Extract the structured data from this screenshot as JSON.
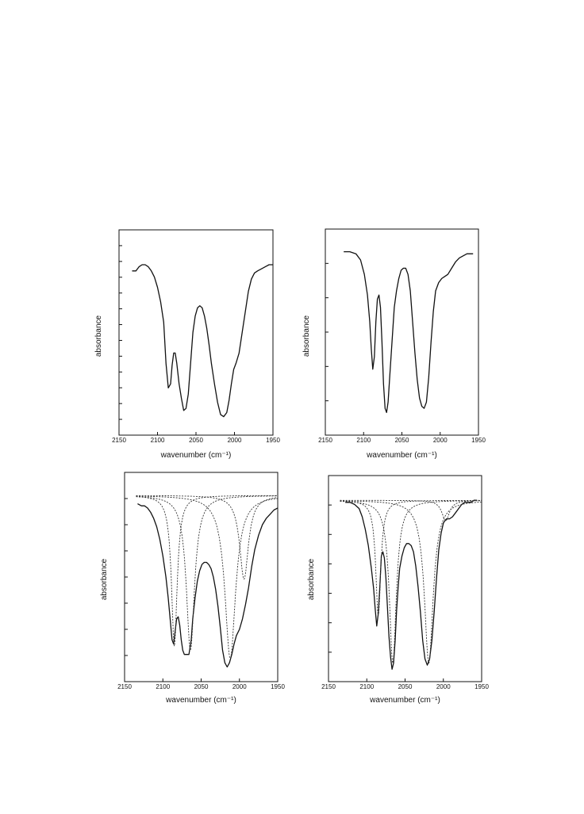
{
  "chart_data": [
    {
      "type": "line",
      "xlabel": "wavenumber (cm⁻¹)",
      "ylabel": "absorbance",
      "xlim": [
        2150,
        1950
      ],
      "x_ticks": [
        2150,
        2100,
        2050,
        2000,
        1950
      ],
      "x_tick_labels": [
        "2150",
        "2100",
        "2050",
        "2000",
        "1950"
      ],
      "y_tick_count": 12,
      "ylim": [
        0,
        1
      ],
      "series": [
        {
          "role": "spectrum",
          "x": [
            2133,
            2128,
            2124,
            2120,
            2116,
            2112,
            2108,
            2104,
            2100,
            2096,
            2092,
            2089,
            2086,
            2083,
            2081,
            2079,
            2077,
            2075,
            2072,
            2069,
            2066,
            2063,
            2060,
            2057,
            2054,
            2051,
            2048,
            2045,
            2042,
            2039,
            2036,
            2033,
            2030,
            2026,
            2022,
            2018,
            2014,
            2010,
            2007,
            2004,
            2001,
            1998,
            1994,
            1990,
            1986,
            1982,
            1978,
            1974,
            1970,
            1965,
            1960,
            1955,
            1950,
            1945
          ],
          "y": [
            0.8,
            0.8,
            0.82,
            0.83,
            0.83,
            0.82,
            0.8,
            0.77,
            0.72,
            0.65,
            0.55,
            0.35,
            0.23,
            0.25,
            0.34,
            0.4,
            0.4,
            0.35,
            0.25,
            0.18,
            0.12,
            0.13,
            0.2,
            0.35,
            0.5,
            0.58,
            0.62,
            0.63,
            0.62,
            0.58,
            0.52,
            0.44,
            0.35,
            0.25,
            0.16,
            0.1,
            0.09,
            0.11,
            0.17,
            0.25,
            0.32,
            0.35,
            0.4,
            0.5,
            0.6,
            0.7,
            0.76,
            0.79,
            0.8,
            0.81,
            0.82,
            0.83,
            0.83,
            0.83
          ]
        }
      ]
    },
    {
      "type": "line",
      "xlabel": "wavenumber (cm⁻¹)",
      "ylabel": "absorbance",
      "xlim": [
        2150,
        1950
      ],
      "x_ticks": [
        2150,
        2100,
        2050,
        2000,
        1950
      ],
      "x_tick_labels": [
        "2150",
        "2100",
        "2050",
        "2000",
        "1950"
      ],
      "y_tick_count": 5,
      "ylim": [
        0,
        1
      ],
      "series": [
        {
          "role": "spectrum",
          "x": [
            2126,
            2118,
            2110,
            2104,
            2099,
            2095,
            2092,
            2090,
            2088,
            2086,
            2084,
            2082,
            2080,
            2078,
            2076,
            2074,
            2072,
            2070,
            2068,
            2066,
            2063,
            2060,
            2057,
            2054,
            2051,
            2048,
            2045,
            2042,
            2039,
            2036,
            2033,
            2030,
            2027,
            2024,
            2021,
            2018,
            2015,
            2012,
            2009,
            2006,
            2002,
            1998,
            1994,
            1990,
            1985,
            1980,
            1975,
            1970,
            1965,
            1960,
            1957
          ],
          "y": [
            0.89,
            0.89,
            0.88,
            0.85,
            0.78,
            0.68,
            0.55,
            0.42,
            0.32,
            0.38,
            0.55,
            0.66,
            0.68,
            0.62,
            0.45,
            0.25,
            0.13,
            0.11,
            0.16,
            0.28,
            0.45,
            0.62,
            0.7,
            0.76,
            0.8,
            0.81,
            0.81,
            0.78,
            0.7,
            0.55,
            0.4,
            0.27,
            0.18,
            0.14,
            0.13,
            0.16,
            0.28,
            0.45,
            0.6,
            0.7,
            0.74,
            0.76,
            0.77,
            0.78,
            0.81,
            0.84,
            0.86,
            0.87,
            0.88,
            0.88,
            0.88
          ]
        }
      ]
    },
    {
      "type": "line",
      "xlabel": "wavenumber (cm⁻¹)",
      "ylabel": "absorbance",
      "xlim": [
        2150,
        1950
      ],
      "x_ticks": [
        2150,
        2100,
        2050,
        2000,
        1950
      ],
      "x_tick_labels": [
        "2150",
        "2100",
        "2050",
        "2000",
        "1950"
      ],
      "y_tick_count": 7,
      "ylim": [
        0,
        1
      ],
      "baseline": 0.89,
      "series": [
        {
          "role": "spectrum",
          "x": [
            2133,
            2128,
            2124,
            2120,
            2116,
            2112,
            2108,
            2104,
            2100,
            2096,
            2093,
            2090,
            2088,
            2086,
            2084,
            2082,
            2080,
            2078,
            2076,
            2074,
            2072,
            2069,
            2066,
            2063,
            2061,
            2058,
            2055,
            2052,
            2049,
            2046,
            2043,
            2040,
            2037,
            2034,
            2031,
            2028,
            2025,
            2022,
            2019,
            2016,
            2013,
            2010,
            2007,
            2004,
            2000,
            1996,
            1992,
            1988,
            1984,
            1980,
            1975,
            1970,
            1965,
            1960,
            1955,
            1950,
            1945,
            1940
          ],
          "y": [
            0.85,
            0.84,
            0.84,
            0.83,
            0.81,
            0.78,
            0.74,
            0.68,
            0.6,
            0.5,
            0.4,
            0.28,
            0.2,
            0.18,
            0.24,
            0.3,
            0.31,
            0.27,
            0.2,
            0.15,
            0.13,
            0.13,
            0.13,
            0.2,
            0.3,
            0.4,
            0.48,
            0.53,
            0.56,
            0.57,
            0.57,
            0.56,
            0.54,
            0.5,
            0.44,
            0.36,
            0.26,
            0.15,
            0.09,
            0.07,
            0.09,
            0.13,
            0.18,
            0.22,
            0.25,
            0.3,
            0.37,
            0.45,
            0.55,
            0.63,
            0.7,
            0.75,
            0.78,
            0.8,
            0.82,
            0.83,
            0.84,
            0.85
          ]
        },
        {
          "role": "component",
          "center": 2085,
          "depth": 0.72,
          "width": 4.5
        },
        {
          "role": "component",
          "center": 2064,
          "depth": 0.74,
          "width": 6.5
        },
        {
          "role": "component",
          "center": 2012,
          "depth": 0.78,
          "width": 8.5
        },
        {
          "role": "component",
          "center": 1994,
          "depth": 0.4,
          "width": 7.0
        }
      ]
    },
    {
      "type": "line",
      "xlabel": "wavenumber (cm⁻¹)",
      "ylabel": "absorbance",
      "xlim": [
        2150,
        1950
      ],
      "x_ticks": [
        2150,
        2100,
        2050,
        2000,
        1950
      ],
      "x_tick_labels": [
        "2150",
        "2100",
        "2050",
        "2000",
        "1950"
      ],
      "y_tick_count": 6,
      "ylim": [
        0,
        1
      ],
      "baseline": 0.88,
      "series": [
        {
          "role": "spectrum",
          "x": [
            2128,
            2122,
            2116,
            2110,
            2106,
            2102,
            2098,
            2094,
            2091,
            2089,
            2087,
            2085,
            2083,
            2081,
            2079,
            2077,
            2075,
            2073,
            2071,
            2069,
            2067,
            2065,
            2063,
            2061,
            2059,
            2057,
            2054,
            2051,
            2048,
            2045,
            2042,
            2039,
            2036,
            2033,
            2030,
            2027,
            2024,
            2021,
            2018,
            2015,
            2012,
            2009,
            2006,
            2003,
            2000,
            1996,
            1992,
            1988,
            1984,
            1980,
            1976,
            1972,
            1968,
            1964,
            1960,
            1956
          ],
          "y": [
            0.87,
            0.87,
            0.86,
            0.84,
            0.8,
            0.74,
            0.66,
            0.55,
            0.45,
            0.35,
            0.27,
            0.33,
            0.46,
            0.61,
            0.63,
            0.6,
            0.5,
            0.36,
            0.22,
            0.12,
            0.06,
            0.09,
            0.2,
            0.35,
            0.46,
            0.55,
            0.61,
            0.65,
            0.67,
            0.67,
            0.66,
            0.63,
            0.56,
            0.46,
            0.34,
            0.2,
            0.11,
            0.08,
            0.11,
            0.2,
            0.34,
            0.5,
            0.64,
            0.72,
            0.77,
            0.79,
            0.79,
            0.8,
            0.82,
            0.84,
            0.86,
            0.87,
            0.87,
            0.87,
            0.88,
            0.88
          ]
        },
        {
          "role": "component",
          "center": 2085,
          "depth": 0.56,
          "width": 4.0
        },
        {
          "role": "component",
          "center": 2066,
          "depth": 0.79,
          "width": 5.5
        },
        {
          "role": "component",
          "center": 2019,
          "depth": 0.79,
          "width": 7.0
        },
        {
          "role": "component",
          "center": 1997,
          "depth": 0.1,
          "width": 6.0
        }
      ]
    }
  ]
}
